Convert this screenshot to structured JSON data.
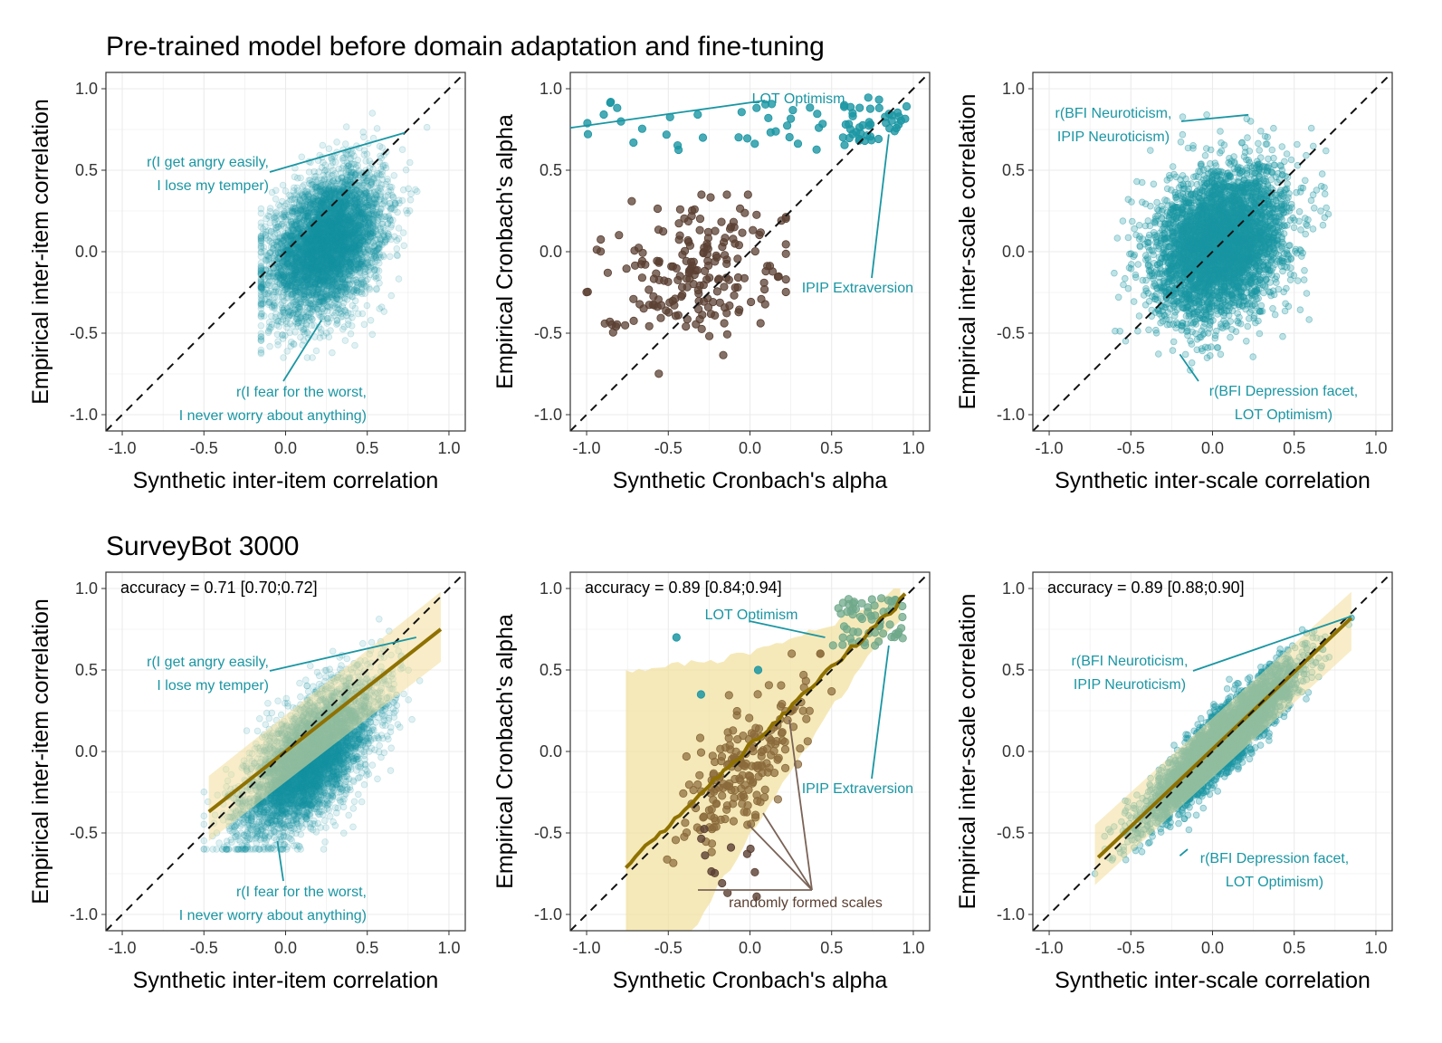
{
  "colors": {
    "teal": "#1a96a3",
    "brown": "#5b4033",
    "band": "#f2df9b",
    "fit": "#8f7100",
    "brown_callout": "#7a6357"
  },
  "row_titles": {
    "top": "Pre-trained model before domain adaptation and fine-tuning",
    "bottom": "SurveyBot 3000"
  },
  "chart_data": [
    {
      "type": "scatter",
      "row": "Pre-trained model before domain adaptation and fine-tuning",
      "xlabel": "Synthetic inter-item correlation",
      "ylabel": "Empirical inter-item correlation",
      "xlim": [
        -1.1,
        1.1
      ],
      "ylim": [
        -1.1,
        1.1
      ],
      "xticks": [
        "-1.0",
        "-0.5",
        "0.0",
        "0.5",
        "1.0"
      ],
      "yticks": [
        "-1.0",
        "-0.5",
        "0.0",
        "0.5",
        "1.0"
      ],
      "grid": true,
      "reference_line": "y = x (dashed)",
      "points": {
        "cloud": "dense",
        "n_approx": 16000,
        "x_range": [
          -0.15,
          0.95
        ],
        "y_range": [
          -0.65,
          0.85
        ],
        "center": [
          0.25,
          0.05
        ]
      },
      "annotations": [
        {
          "text": [
            "r(I get angry easily,",
            "I lose my temper)"
          ],
          "x": 0.73,
          "y": 0.73
        },
        {
          "text": [
            "r(I fear for the worst,",
            "I never worry about anything)"
          ],
          "x": 0.22,
          "y": -0.42
        }
      ]
    },
    {
      "type": "scatter",
      "row": "Pre-trained model before domain adaptation and fine-tuning",
      "xlabel": "Synthetic Cronbach's alpha",
      "ylabel": "Empirical Cronbach's alpha",
      "xlim": [
        -1.1,
        1.1
      ],
      "ylim": [
        -1.1,
        1.1
      ],
      "xticks": [
        "-1.0",
        "-0.5",
        "0.0",
        "0.5",
        "1.0"
      ],
      "yticks": [
        "-1.0",
        "-0.5",
        "0.0",
        "0.5",
        "1.0"
      ],
      "grid": true,
      "reference_line": "y = x (dashed)",
      "points": {
        "teal_n": 80,
        "teal_x_range": [
          -1.0,
          0.97
        ],
        "teal_y_range": [
          0.62,
          0.95
        ],
        "brown_n": 200,
        "brown_center": [
          -0.35,
          -0.1
        ],
        "brown_x_range": [
          -1.0,
          0.22
        ],
        "brown_y_range": [
          -0.85,
          0.35
        ]
      },
      "annotations": [
        {
          "text": [
            "LOT Optimism"
          ],
          "x": -1.1,
          "y": 0.76
        },
        {
          "text": [
            "IPIP Extraversion"
          ],
          "x": 0.85,
          "y": 0.72
        }
      ]
    },
    {
      "type": "scatter",
      "row": "Pre-trained model before domain adaptation and fine-tuning",
      "xlabel": "Synthetic inter-scale correlation",
      "ylabel": "Empirical inter-scale correlation",
      "xlim": [
        -1.1,
        1.1
      ],
      "ylim": [
        -1.1,
        1.1
      ],
      "xticks": [
        "-1.0",
        "-0.5",
        "0.0",
        "0.5",
        "1.0"
      ],
      "yticks": [
        "-1.0",
        "-0.5",
        "0.0",
        "0.5",
        "1.0"
      ],
      "grid": true,
      "reference_line": "y = x (dashed)",
      "points": {
        "cloud": "dense",
        "n_approx": 5000,
        "x_range": [
          -0.85,
          0.85
        ],
        "y_range": [
          -0.78,
          0.84
        ],
        "center": [
          0.05,
          0.05
        ]
      },
      "annotations": [
        {
          "text": [
            "r(BFI Neuroticism,",
            "IPIP Neuroticism)"
          ],
          "x": 0.22,
          "y": 0.84
        },
        {
          "text": [
            "r(BFI Depression facet,",
            "LOT Optimism)"
          ],
          "x": -0.2,
          "y": -0.63
        }
      ]
    },
    {
      "type": "scatter",
      "row": "SurveyBot 3000",
      "xlabel": "Synthetic inter-item correlation",
      "ylabel": "Empirical inter-item correlation",
      "xlim": [
        -1.1,
        1.1
      ],
      "ylim": [
        -1.1,
        1.1
      ],
      "xticks": [
        "-1.0",
        "-0.5",
        "0.0",
        "0.5",
        "1.0"
      ],
      "yticks": [
        "-1.0",
        "-0.5",
        "0.0",
        "0.5",
        "1.0"
      ],
      "grid": true,
      "reference_line": "y = x (dashed)",
      "accuracy_text": "accuracy = 0.71 [0.70;0.72]",
      "fit_line": {
        "x": [
          -0.47,
          0.95
        ],
        "y": [
          -0.37,
          0.75
        ]
      },
      "band": {
        "x": [
          -0.47,
          0.95
        ],
        "lower": [
          -0.55,
          0.55
        ],
        "upper": [
          -0.15,
          0.98
        ]
      },
      "annotations": [
        {
          "text": [
            "r(I get angry easily,",
            "I lose my temper)"
          ],
          "x": 0.8,
          "y": 0.7
        },
        {
          "text": [
            "r(I fear for the worst,",
            "I never worry about anything)"
          ],
          "x": -0.05,
          "y": -0.55
        }
      ]
    },
    {
      "type": "scatter",
      "row": "SurveyBot 3000",
      "xlabel": "Synthetic Cronbach's alpha",
      "ylabel": "Empirical Cronbach's alpha",
      "xlim": [
        -1.1,
        1.1
      ],
      "ylim": [
        -1.1,
        1.1
      ],
      "xticks": [
        "-1.0",
        "-0.5",
        "0.0",
        "0.5",
        "1.0"
      ],
      "yticks": [
        "-1.0",
        "-0.5",
        "0.0",
        "0.5",
        "1.0"
      ],
      "grid": true,
      "reference_line": "y = x (dashed)",
      "accuracy_text": "accuracy = 0.89 [0.84;0.94]",
      "fit_line": {
        "x": [
          -0.76,
          0.95
        ],
        "y": [
          -0.7,
          0.95
        ]
      },
      "annotations": [
        {
          "text": [
            "LOT Optimism"
          ],
          "x": 0.46,
          "y": 0.7
        },
        {
          "text": [
            "IPIP Extraversion"
          ],
          "x": 0.85,
          "y": 0.65
        },
        {
          "text": [
            "randomly formed scales"
          ],
          "x": 0.4,
          "y": -0.88
        }
      ]
    },
    {
      "type": "scatter",
      "row": "SurveyBot 3000",
      "xlabel": "Synthetic inter-scale correlation",
      "ylabel": "Empirical inter-scale correlation",
      "xlim": [
        -1.1,
        1.1
      ],
      "ylim": [
        -1.1,
        1.1
      ],
      "xticks": [
        "-1.0",
        "-0.5",
        "0.0",
        "0.5",
        "1.0"
      ],
      "yticks": [
        "-1.0",
        "-0.5",
        "0.0",
        "0.5",
        "1.0"
      ],
      "grid": true,
      "reference_line": "y = x (dashed)",
      "accuracy_text": "accuracy = 0.89 [0.88;0.90]",
      "fit_line": {
        "x": [
          -0.7,
          0.85
        ],
        "y": [
          -0.65,
          0.82
        ]
      },
      "band": {
        "x": [
          -0.72,
          0.85
        ],
        "lower": [
          -0.82,
          0.62
        ],
        "upper": [
          -0.45,
          0.98
        ]
      },
      "annotations": [
        {
          "text": [
            "r(BFI Neuroticism,",
            "IPIP Neuroticism)"
          ],
          "x": 0.85,
          "y": 0.83
        },
        {
          "text": [
            "r(BFI Depression facet,",
            "LOT Optimism)"
          ],
          "x": -0.2,
          "y": -0.64
        }
      ]
    }
  ]
}
